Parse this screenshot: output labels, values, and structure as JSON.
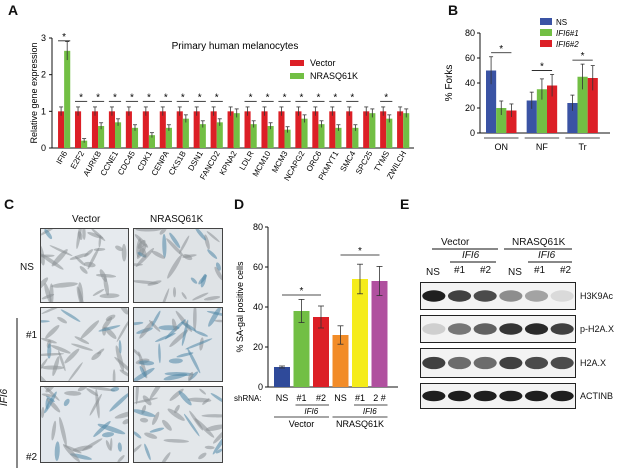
{
  "panels": {
    "A": "A",
    "B": "B",
    "C": "C",
    "D": "D",
    "E": "E"
  },
  "colors": {
    "red": "#dc1f26",
    "green": "#72bf44",
    "blue": "#3a53a4",
    "yellow": "#f5ec1b",
    "purple": "#b0509f",
    "orange": "#f28c28",
    "navy": "#2f4a9a"
  },
  "chart_data": [
    {
      "panel": "A",
      "type": "bar",
      "title": "Primary human melanocytes",
      "ylabel": "Relative gene expression",
      "ylim": [
        0,
        3
      ],
      "yticks": [
        "0",
        "1",
        "2",
        "3"
      ],
      "categories": [
        "IFI6",
        "E2F2",
        "AURKB",
        "CCNE1",
        "CDC45",
        "CDK1",
        "CENPA",
        "CKS1B",
        "DSN1",
        "FANCD2",
        "KPNA2",
        "LDLR",
        "MCM10",
        "MCM3",
        "NCAPG2",
        "ORC6",
        "PKMYT1",
        "SMC4",
        "SPC25",
        "TYMS",
        "ZWILCH"
      ],
      "series": [
        {
          "name": "Vector",
          "color": "#dc1f26",
          "values": [
            1,
            1,
            1,
            1,
            1,
            1,
            1,
            1,
            1,
            1,
            1,
            1,
            1,
            1,
            1,
            1,
            1,
            1,
            1,
            1,
            1
          ]
        },
        {
          "name": "NRASQ61K",
          "color": "#72bf44",
          "values": [
            2.65,
            0.2,
            0.6,
            0.7,
            0.55,
            0.35,
            0.55,
            0.8,
            0.65,
            0.7,
            0.95,
            0.65,
            0.6,
            0.5,
            0.8,
            0.65,
            0.55,
            0.55,
            0.95,
            0.8,
            0.95
          ]
        }
      ],
      "significance": [
        "*",
        "*",
        "*",
        "*",
        "*",
        "*",
        "*",
        "*",
        "*",
        "*",
        "",
        "*",
        "*",
        "*",
        "*",
        "*",
        "*",
        "*",
        "",
        "*",
        ""
      ]
    },
    {
      "panel": "B",
      "type": "bar",
      "ylabel": "% Forks",
      "ylim": [
        0,
        80
      ],
      "yticks": [
        "0",
        "20",
        "40",
        "60",
        "80"
      ],
      "categories": [
        "ON",
        "NF",
        "Tr"
      ],
      "series": [
        {
          "name": "NS",
          "color": "#3a53a4",
          "values": [
            50,
            26,
            24
          ]
        },
        {
          "name": "IFI6#1",
          "color": "#72bf44",
          "values": [
            20,
            35,
            45
          ]
        },
        {
          "name": "IFI6#2",
          "color": "#dc1f26",
          "values": [
            18,
            38,
            44
          ]
        }
      ],
      "significance": [
        "*",
        "*",
        "*"
      ]
    },
    {
      "panel": "D",
      "type": "bar",
      "ylabel": "% SA-gal positive cells",
      "ylim": [
        0,
        80
      ],
      "yticks": [
        "0",
        "20",
        "40",
        "60",
        "80"
      ],
      "shrna_label": "shRNA:",
      "categories": [
        "NS",
        "#1",
        "#2",
        "NS",
        "#1",
        "2 #"
      ],
      "colors": [
        "#2f4a9a",
        "#72bf44",
        "#dc1f26",
        "#f28c28",
        "#f5ec1b",
        "#b0509f"
      ],
      "values": [
        10,
        38,
        35,
        26,
        54,
        53
      ],
      "group_labels": [
        "Vector",
        "NRASQ61K"
      ],
      "ifi6_label": "IFI6",
      "significance": [
        "*",
        "*"
      ]
    }
  ],
  "panelC": {
    "col_headers": [
      "Vector",
      "NRASQ61K"
    ],
    "row_labels": [
      "NS",
      "#1",
      "#2"
    ],
    "ifi6_label": "IFI6"
  },
  "panelE": {
    "groups": [
      "Vector",
      "NRASQ61K"
    ],
    "ifi6_label": "IFI6",
    "lanes": [
      "NS",
      "#1",
      "#2",
      "NS",
      "#1",
      "#2"
    ],
    "blots": [
      "H3K9Ac",
      "p-H2A.X",
      "H2A.X",
      "ACTINB"
    ]
  }
}
